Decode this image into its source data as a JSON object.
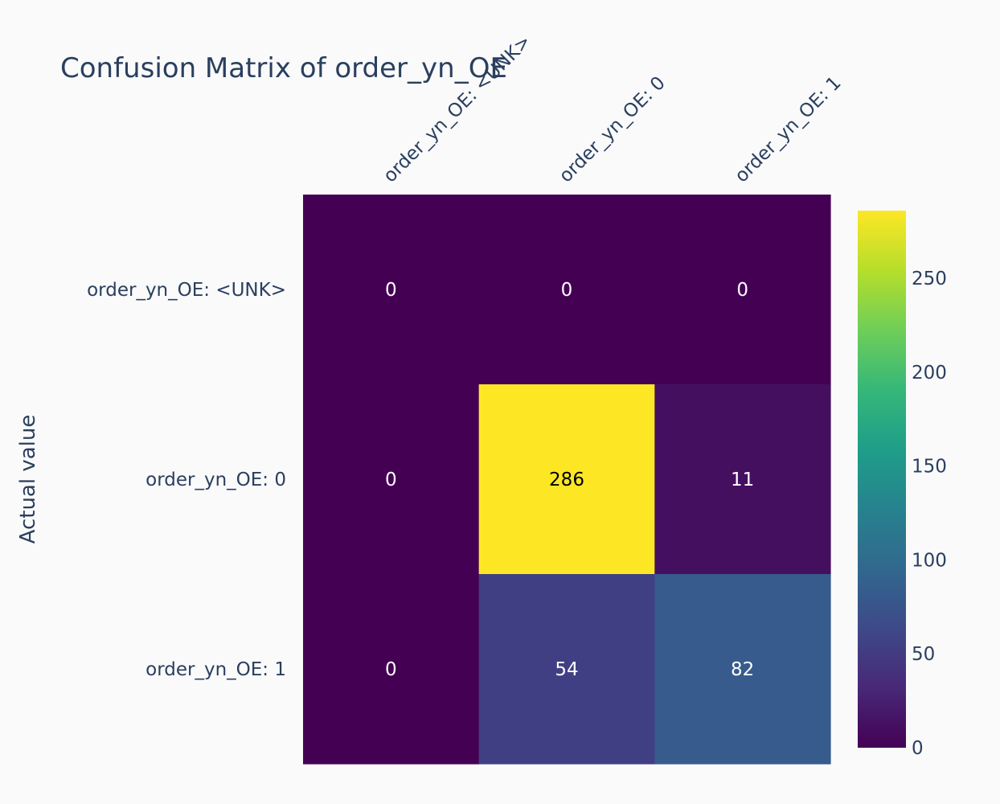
{
  "chart_data": {
    "type": "heatmap",
    "title": "Confusion Matrix of order_yn_OE",
    "xlabel": "",
    "ylabel": "Actual value",
    "x_categories": [
      "order_yn_OE: <UNK>",
      "order_yn_OE: 0",
      "order_yn_OE: 1"
    ],
    "y_categories": [
      "order_yn_OE: <UNK>",
      "order_yn_OE: 0",
      "order_yn_OE: 1"
    ],
    "z": [
      [
        0,
        0,
        0
      ],
      [
        0,
        286,
        11
      ],
      [
        0,
        54,
        82
      ]
    ],
    "colorscale": "Viridis",
    "zmin": 0,
    "zmax": 286,
    "colorbar_ticks": [
      0,
      50,
      100,
      150,
      200,
      250
    ],
    "x_axis_side": "top",
    "colorbar_position": "right"
  }
}
